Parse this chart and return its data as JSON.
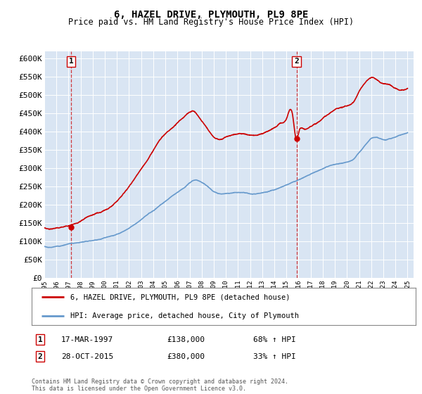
{
  "title": "6, HAZEL DRIVE, PLYMOUTH, PL9 8PE",
  "subtitle": "Price paid vs. HM Land Registry's House Price Index (HPI)",
  "bg_color": "#d9e5f3",
  "hpi_color": "#6699cc",
  "price_color": "#cc0000",
  "marker_color": "#cc0000",
  "sale1_date_num": 1997.21,
  "sale1_price": 138000,
  "sale1_label": "1",
  "sale1_text": "17-MAR-1997",
  "sale1_amount": "£138,000",
  "sale1_hpi": "68% ↑ HPI",
  "sale2_date_num": 2015.83,
  "sale2_price": 380000,
  "sale2_label": "2",
  "sale2_text": "28-OCT-2015",
  "sale2_amount": "£380,000",
  "sale2_hpi": "33% ↑ HPI",
  "xmin": 1995,
  "xmax": 2025.5,
  "ymin": 0,
  "ymax": 620000,
  "yticks": [
    0,
    50000,
    100000,
    150000,
    200000,
    250000,
    300000,
    350000,
    400000,
    450000,
    500000,
    550000,
    600000
  ],
  "legend_line1": "6, HAZEL DRIVE, PLYMOUTH, PL9 8PE (detached house)",
  "legend_line2": "HPI: Average price, detached house, City of Plymouth",
  "footer": "Contains HM Land Registry data © Crown copyright and database right 2024.\nThis data is licensed under the Open Government Licence v3.0.",
  "xticks": [
    1995,
    1996,
    1997,
    1998,
    1999,
    2000,
    2001,
    2002,
    2003,
    2004,
    2005,
    2006,
    2007,
    2008,
    2009,
    2010,
    2011,
    2012,
    2013,
    2014,
    2015,
    2016,
    2017,
    2018,
    2019,
    2020,
    2021,
    2022,
    2023,
    2024,
    2025
  ],
  "hpi_knots_x": [
    1995.0,
    1995.5,
    1996.0,
    1996.5,
    1997.0,
    1997.5,
    1998.0,
    1998.5,
    1999.0,
    1999.5,
    2000.0,
    2000.5,
    2001.0,
    2001.5,
    2002.0,
    2002.5,
    2003.0,
    2003.5,
    2004.0,
    2004.5,
    2005.0,
    2005.5,
    2006.0,
    2006.5,
    2007.0,
    2007.5,
    2008.0,
    2008.5,
    2009.0,
    2009.5,
    2010.0,
    2010.5,
    2011.0,
    2011.5,
    2012.0,
    2012.5,
    2013.0,
    2013.5,
    2014.0,
    2014.5,
    2015.0,
    2015.5,
    2016.0,
    2016.5,
    2017.0,
    2017.5,
    2018.0,
    2018.5,
    2019.0,
    2019.5,
    2020.0,
    2020.5,
    2021.0,
    2021.5,
    2022.0,
    2022.5,
    2023.0,
    2023.5,
    2024.0,
    2024.5,
    2025.0
  ],
  "hpi_knots_y": [
    80000,
    78000,
    80000,
    83000,
    88000,
    90000,
    93000,
    97000,
    100000,
    104000,
    108000,
    112000,
    118000,
    126000,
    136000,
    147000,
    158000,
    170000,
    182000,
    195000,
    208000,
    220000,
    232000,
    244000,
    258000,
    265000,
    260000,
    248000,
    235000,
    230000,
    232000,
    234000,
    236000,
    236000,
    234000,
    234000,
    236000,
    240000,
    244000,
    250000,
    256000,
    262000,
    268000,
    274000,
    282000,
    290000,
    298000,
    305000,
    310000,
    314000,
    318000,
    325000,
    345000,
    365000,
    385000,
    388000,
    382000,
    385000,
    390000,
    395000,
    400000
  ],
  "red_knots_x": [
    1995.0,
    1995.5,
    1996.0,
    1996.5,
    1997.0,
    1997.5,
    1998.0,
    1998.5,
    1999.0,
    1999.5,
    2000.0,
    2000.5,
    2001.0,
    2001.5,
    2002.0,
    2002.5,
    2003.0,
    2003.5,
    2004.0,
    2004.5,
    2005.0,
    2005.5,
    2006.0,
    2006.5,
    2007.0,
    2007.25,
    2007.5,
    2008.0,
    2008.5,
    2009.0,
    2009.5,
    2010.0,
    2010.5,
    2011.0,
    2011.5,
    2012.0,
    2012.5,
    2013.0,
    2013.5,
    2014.0,
    2014.5,
    2015.0,
    2015.5,
    2015.83,
    2016.0,
    2016.5,
    2017.0,
    2017.5,
    2018.0,
    2018.5,
    2019.0,
    2019.5,
    2020.0,
    2020.5,
    2021.0,
    2021.5,
    2022.0,
    2022.5,
    2023.0,
    2023.5,
    2024.0,
    2024.5,
    2025.0
  ],
  "red_knots_y": [
    130000,
    128000,
    130000,
    133000,
    138000,
    143000,
    150000,
    158000,
    166000,
    174000,
    183000,
    195000,
    210000,
    228000,
    248000,
    272000,
    296000,
    322000,
    350000,
    375000,
    395000,
    410000,
    425000,
    440000,
    452000,
    455000,
    450000,
    430000,
    408000,
    388000,
    382000,
    388000,
    393000,
    396000,
    395000,
    392000,
    392000,
    396000,
    402000,
    410000,
    422000,
    435000,
    448000,
    380000,
    398000,
    410000,
    418000,
    428000,
    440000,
    452000,
    462000,
    468000,
    472000,
    482000,
    510000,
    535000,
    548000,
    540000,
    530000,
    528000,
    520000,
    515000,
    520000
  ]
}
